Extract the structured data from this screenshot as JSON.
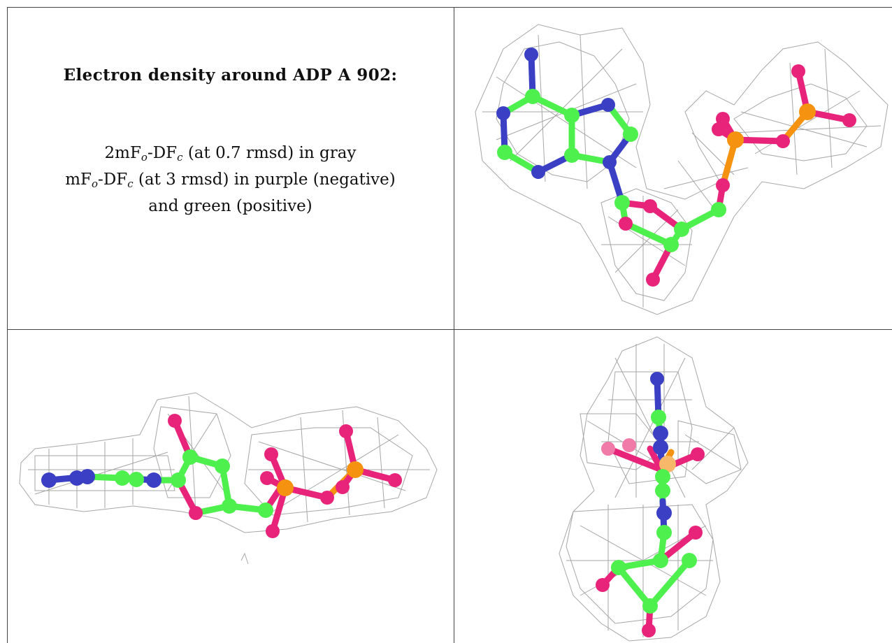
{
  "header": {
    "title": "Electron density around ADP A 902:"
  },
  "legend": {
    "line1": {
      "prefix": "2mF",
      "sub1": "o",
      "mid": "-DF",
      "sub2": "c",
      "suffix": " (at 0.7 rmsd) in gray"
    },
    "line2": {
      "prefix": "mF",
      "sub1": "o",
      "mid": "-DF",
      "sub2": "c",
      "suffix": " (at 3 rmsd) in purple (negative)"
    },
    "line3": "and green (positive)"
  },
  "colors": {
    "mesh": "#9a9a9a",
    "carbon": "#4ef04e",
    "nitrogen": "#3a3fc4",
    "oxygen": "#e8237a",
    "phosphorus": "#f5920f"
  }
}
